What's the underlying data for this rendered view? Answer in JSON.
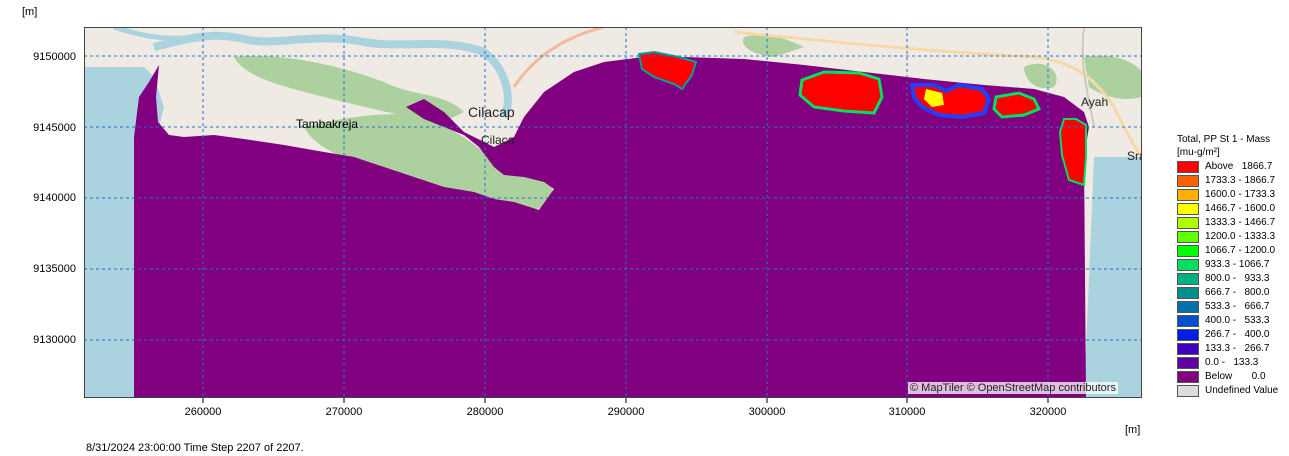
{
  "axes": {
    "y_unit": "[m]",
    "x_unit": "[m]",
    "y_ticks": [
      "9150000",
      "9145000",
      "9140000",
      "9135000",
      "9130000"
    ],
    "x_ticks": [
      "260000",
      "270000",
      "280000",
      "290000",
      "300000",
      "310000",
      "320000"
    ]
  },
  "map_labels": {
    "tambakreja": "Tambakreja",
    "cilacap": "Cilacap",
    "cilacap_partial": "Cilaca",
    "ayah": "Ayah",
    "sra": "Sra"
  },
  "attribution": "© MapTiler © OpenStreetMap contributors",
  "legend": {
    "title_line1": "Total, PP St 1 - Mass",
    "title_line2": "[mu-g/m²]",
    "items": [
      {
        "label": "Above   1866.7",
        "color": "#ff0000"
      },
      {
        "label": "1733.3 - 1866.7",
        "color": "#ff6000"
      },
      {
        "label": "1600.0 - 1733.3",
        "color": "#ffb000"
      },
      {
        "label": "1466.7 - 1600.0",
        "color": "#ffff00"
      },
      {
        "label": "1333.3 - 1466.7",
        "color": "#b0ff00"
      },
      {
        "label": "1200.0 - 1333.3",
        "color": "#60ff00"
      },
      {
        "label": "1066.7 - 1200.0",
        "color": "#00ff00"
      },
      {
        "label": "933.3 - 1066.7",
        "color": "#00e060"
      },
      {
        "label": "800.0 -   933.3",
        "color": "#00b080"
      },
      {
        "label": "666.7 -   800.0",
        "color": "#009090"
      },
      {
        "label": "533.3 -   666.7",
        "color": "#0070b0"
      },
      {
        "label": "400.0 -   533.3",
        "color": "#0050d0"
      },
      {
        "label": "266.7 -   400.0",
        "color": "#0020e0"
      },
      {
        "label": "133.3 -   266.7",
        "color": "#4000c0"
      },
      {
        "label": "0.0 -   133.3",
        "color": "#6000a0"
      },
      {
        "label": "Below       0.0",
        "color": "#800080"
      },
      {
        "label": "Undefined Value",
        "color": "#dcdcdc"
      }
    ]
  },
  "status": "8/31/2024 23:00:00  Time Step 2207 of 2207."
}
